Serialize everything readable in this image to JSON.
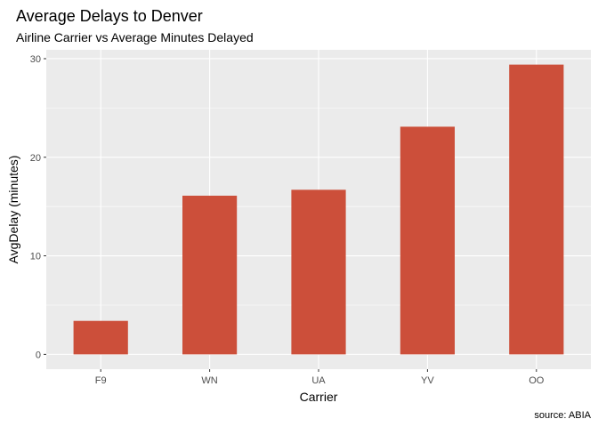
{
  "chart_data": {
    "type": "bar",
    "title": "Average Delays to Denver",
    "subtitle": "Airline Carrier vs Average Minutes Delayed",
    "xlabel": "Carrier",
    "ylabel": "AvgDelay (minutes)",
    "caption": "source: ABIA",
    "categories": [
      "F9",
      "WN",
      "UA",
      "YV",
      "OO"
    ],
    "values": [
      3.4,
      16.1,
      16.7,
      23.1,
      29.4
    ],
    "ylim": [
      -1.5,
      30.9
    ],
    "yticks": [
      0,
      10,
      20,
      30
    ],
    "grid": true,
    "bar_color": "#CC4F3A",
    "panel_color": "#EBEBEB",
    "grid_color": "#FFFFFF"
  }
}
